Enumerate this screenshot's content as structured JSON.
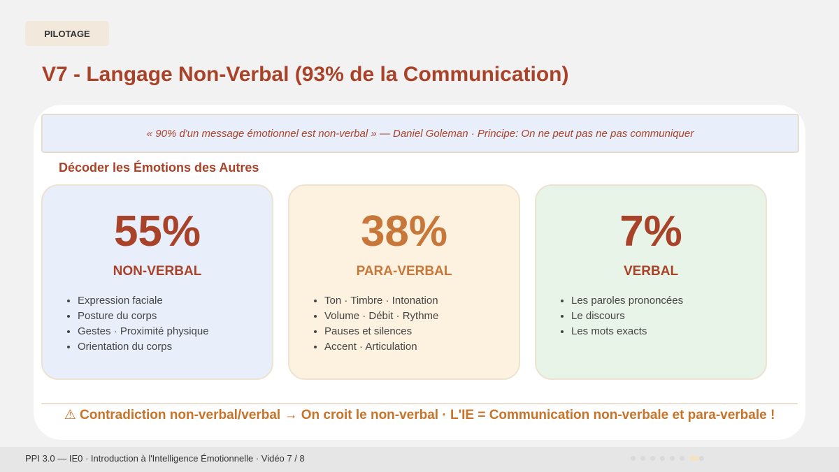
{
  "tag": "PILOTAGE",
  "title": "V7 - Langage Non-Verbal (93% de la Communication)",
  "quote": "« 90% d'un message émotionnel est non-verbal » — Daniel Goleman · Principe: On ne peut pas ne pas communiquer",
  "section_title": "Décoder les Émotions des Autres",
  "cards": [
    {
      "value": "55%",
      "label": "NON-VERBAL",
      "items": [
        "Expression faciale",
        "Posture du corps",
        "Gestes · Proximité physique",
        "Orientation du corps"
      ]
    },
    {
      "value": "38%",
      "label": "PARA-VERBAL",
      "items": [
        "Ton · Timbre · Intonation",
        "Volume · Débit · Rythme",
        "Pauses et silences",
        "Accent · Articulation"
      ]
    },
    {
      "value": "7%",
      "label": "VERBAL",
      "items": [
        "Les paroles prononcées",
        "Le discours",
        "Les mots exacts"
      ]
    }
  ],
  "warning": "⚠ Contradiction non-verbal/verbal → On croit le non-verbal · L'IE = Communication non-verbale et para-verbale !",
  "footer": "PPI 3.0 — IE0 · Introduction à l'Intelligence Émotionnelle · Vidéo 7 / 8"
}
